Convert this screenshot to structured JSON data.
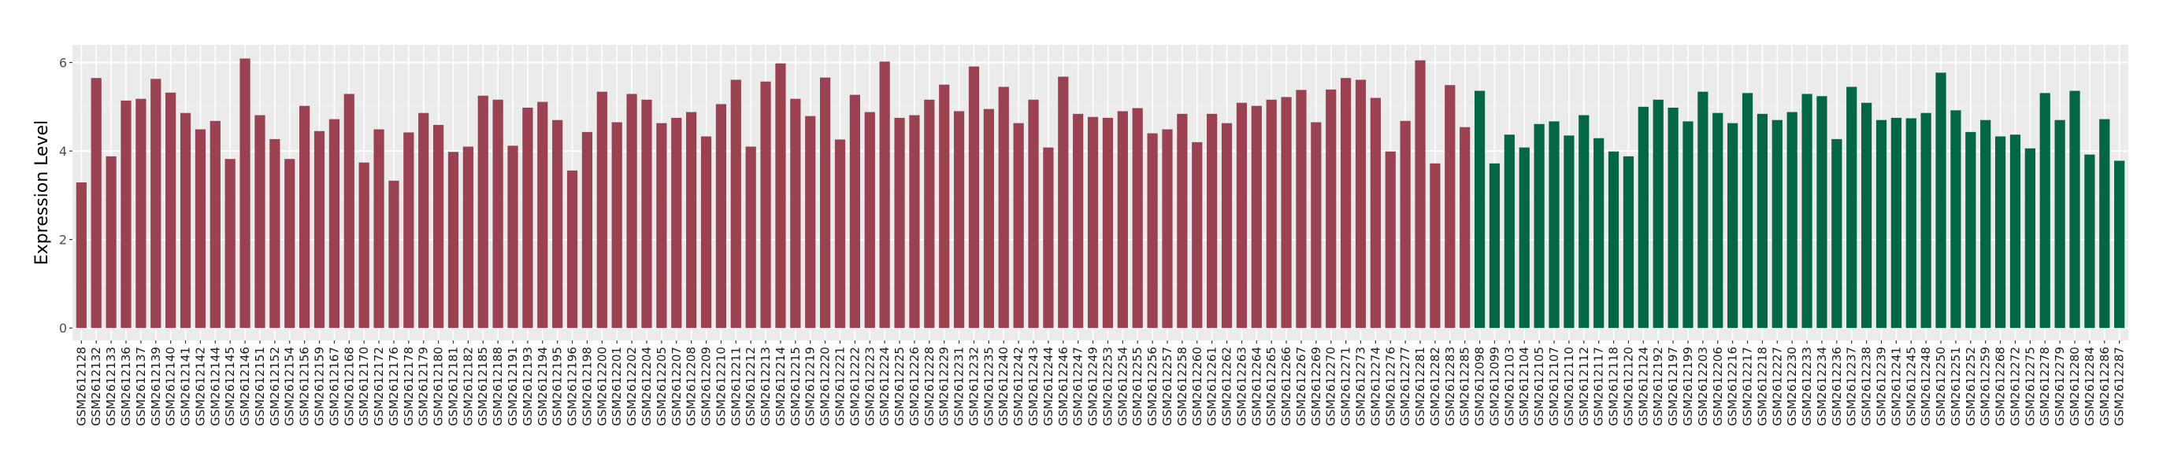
{
  "chart_data": {
    "type": "bar",
    "title": "",
    "xlabel": "",
    "ylabel": "Expression Level",
    "ylim": [
      -0.28,
      6.4
    ],
    "yticks": [
      0,
      2,
      4,
      6
    ],
    "grid": true,
    "legend": "none",
    "panel_background": "#EBEBEB",
    "series": [
      {
        "color": "#9B4252",
        "categories": [
          "GSM2612128",
          "GSM2612132",
          "GSM2612133",
          "GSM2612136",
          "GSM2612137",
          "GSM2612139",
          "GSM2612140",
          "GSM2612141",
          "GSM2612142",
          "GSM2612144",
          "GSM2612145",
          "GSM2612146",
          "GSM2612151",
          "GSM2612152",
          "GSM2612154",
          "GSM2612156",
          "GSM2612159",
          "GSM2612167",
          "GSM2612168",
          "GSM2612170",
          "GSM2612172",
          "GSM2612176",
          "GSM2612178",
          "GSM2612179",
          "GSM2612180",
          "GSM2612181",
          "GSM2612182",
          "GSM2612185",
          "GSM2612188",
          "GSM2612191",
          "GSM2612193",
          "GSM2612194",
          "GSM2612195",
          "GSM2612196",
          "GSM2612198",
          "GSM2612200",
          "GSM2612201",
          "GSM2612202",
          "GSM2612204",
          "GSM2612205",
          "GSM2612207",
          "GSM2612208",
          "GSM2612209",
          "GSM2612210",
          "GSM2612211",
          "GSM2612212",
          "GSM2612213",
          "GSM2612214",
          "GSM2612215",
          "GSM2612219",
          "GSM2612220",
          "GSM2612221",
          "GSM2612222",
          "GSM2612223",
          "GSM2612224",
          "GSM2612225",
          "GSM2612226",
          "GSM2612228",
          "GSM2612229",
          "GSM2612231",
          "GSM2612232",
          "GSM2612235",
          "GSM2612240",
          "GSM2612242",
          "GSM2612243",
          "GSM2612244",
          "GSM2612246",
          "GSM2612247",
          "GSM2612249",
          "GSM2612253",
          "GSM2612254",
          "GSM2612255",
          "GSM2612256",
          "GSM2612257",
          "GSM2612258",
          "GSM2612260",
          "GSM2612261",
          "GSM2612262",
          "GSM2612263",
          "GSM2612264",
          "GSM2612265",
          "GSM2612266",
          "GSM2612267",
          "GSM2612269",
          "GSM2612270",
          "GSM2612271",
          "GSM2612273",
          "GSM2612274",
          "GSM2612276",
          "GSM2612277",
          "GSM2612281",
          "GSM2612282",
          "GSM2612283",
          "GSM2612285"
        ],
        "values": [
          3.29,
          5.65,
          3.88,
          5.14,
          5.18,
          5.63,
          5.32,
          4.86,
          4.49,
          4.68,
          3.82,
          6.09,
          4.81,
          4.27,
          3.82,
          5.02,
          4.45,
          4.72,
          5.29,
          3.74,
          4.49,
          3.33,
          4.42,
          4.86,
          4.59,
          3.98,
          4.1,
          5.25,
          5.16,
          4.12,
          4.98,
          5.11,
          4.7,
          3.56,
          4.43,
          5.34,
          4.65,
          5.29,
          5.16,
          4.63,
          4.75,
          4.88,
          4.33,
          5.06,
          5.61,
          4.1,
          5.57,
          5.98,
          5.18,
          4.79,
          5.66,
          4.26,
          5.27,
          4.88,
          6.02,
          4.75,
          4.81,
          5.16,
          5.5,
          4.9,
          5.91,
          4.95,
          5.45,
          4.63,
          5.16,
          4.08,
          5.68,
          4.84,
          4.77,
          4.75,
          4.9,
          4.97,
          4.4,
          4.49,
          4.84,
          4.2,
          4.84,
          4.63,
          5.09,
          5.02,
          5.16,
          5.22,
          5.38,
          4.65,
          5.39,
          5.65,
          5.61,
          5.2,
          3.99,
          4.68,
          6.05,
          3.72,
          5.49,
          4.54
        ]
      },
      {
        "color": "#036645",
        "categories": [
          "GSM2612098",
          "GSM2612099",
          "GSM2612103",
          "GSM2612104",
          "GSM2612105",
          "GSM2612107",
          "GSM2612110",
          "GSM2612112",
          "GSM2612117",
          "GSM2612118",
          "GSM2612120",
          "GSM2612124",
          "GSM2612192",
          "GSM2612197",
          "GSM2612199",
          "GSM2612203",
          "GSM2612206",
          "GSM2612216",
          "GSM2612217",
          "GSM2612218",
          "GSM2612227",
          "GSM2612230",
          "GSM2612233",
          "GSM2612234",
          "GSM2612236",
          "GSM2612237",
          "GSM2612238",
          "GSM2612239",
          "GSM2612241",
          "GSM2612245",
          "GSM2612248",
          "GSM2612250",
          "GSM2612251",
          "GSM2612252",
          "GSM2612259",
          "GSM2612268",
          "GSM2612272",
          "GSM2612275",
          "GSM2612278",
          "GSM2612279",
          "GSM2612280",
          "GSM2612284",
          "GSM2612286",
          "GSM2612287"
        ],
        "values": [
          5.36,
          3.72,
          4.37,
          4.08,
          4.61,
          4.67,
          4.35,
          4.81,
          4.29,
          3.99,
          3.88,
          5.0,
          5.16,
          4.98,
          4.67,
          5.34,
          4.86,
          4.63,
          5.31,
          4.84,
          4.7,
          4.88,
          5.29,
          5.24,
          4.27,
          5.45,
          5.09,
          4.7,
          4.75,
          4.74,
          4.86,
          5.77,
          4.92,
          4.43,
          4.7,
          4.33,
          4.37,
          4.06,
          5.31,
          4.7,
          5.36,
          3.92,
          4.72,
          3.78
        ]
      }
    ]
  }
}
